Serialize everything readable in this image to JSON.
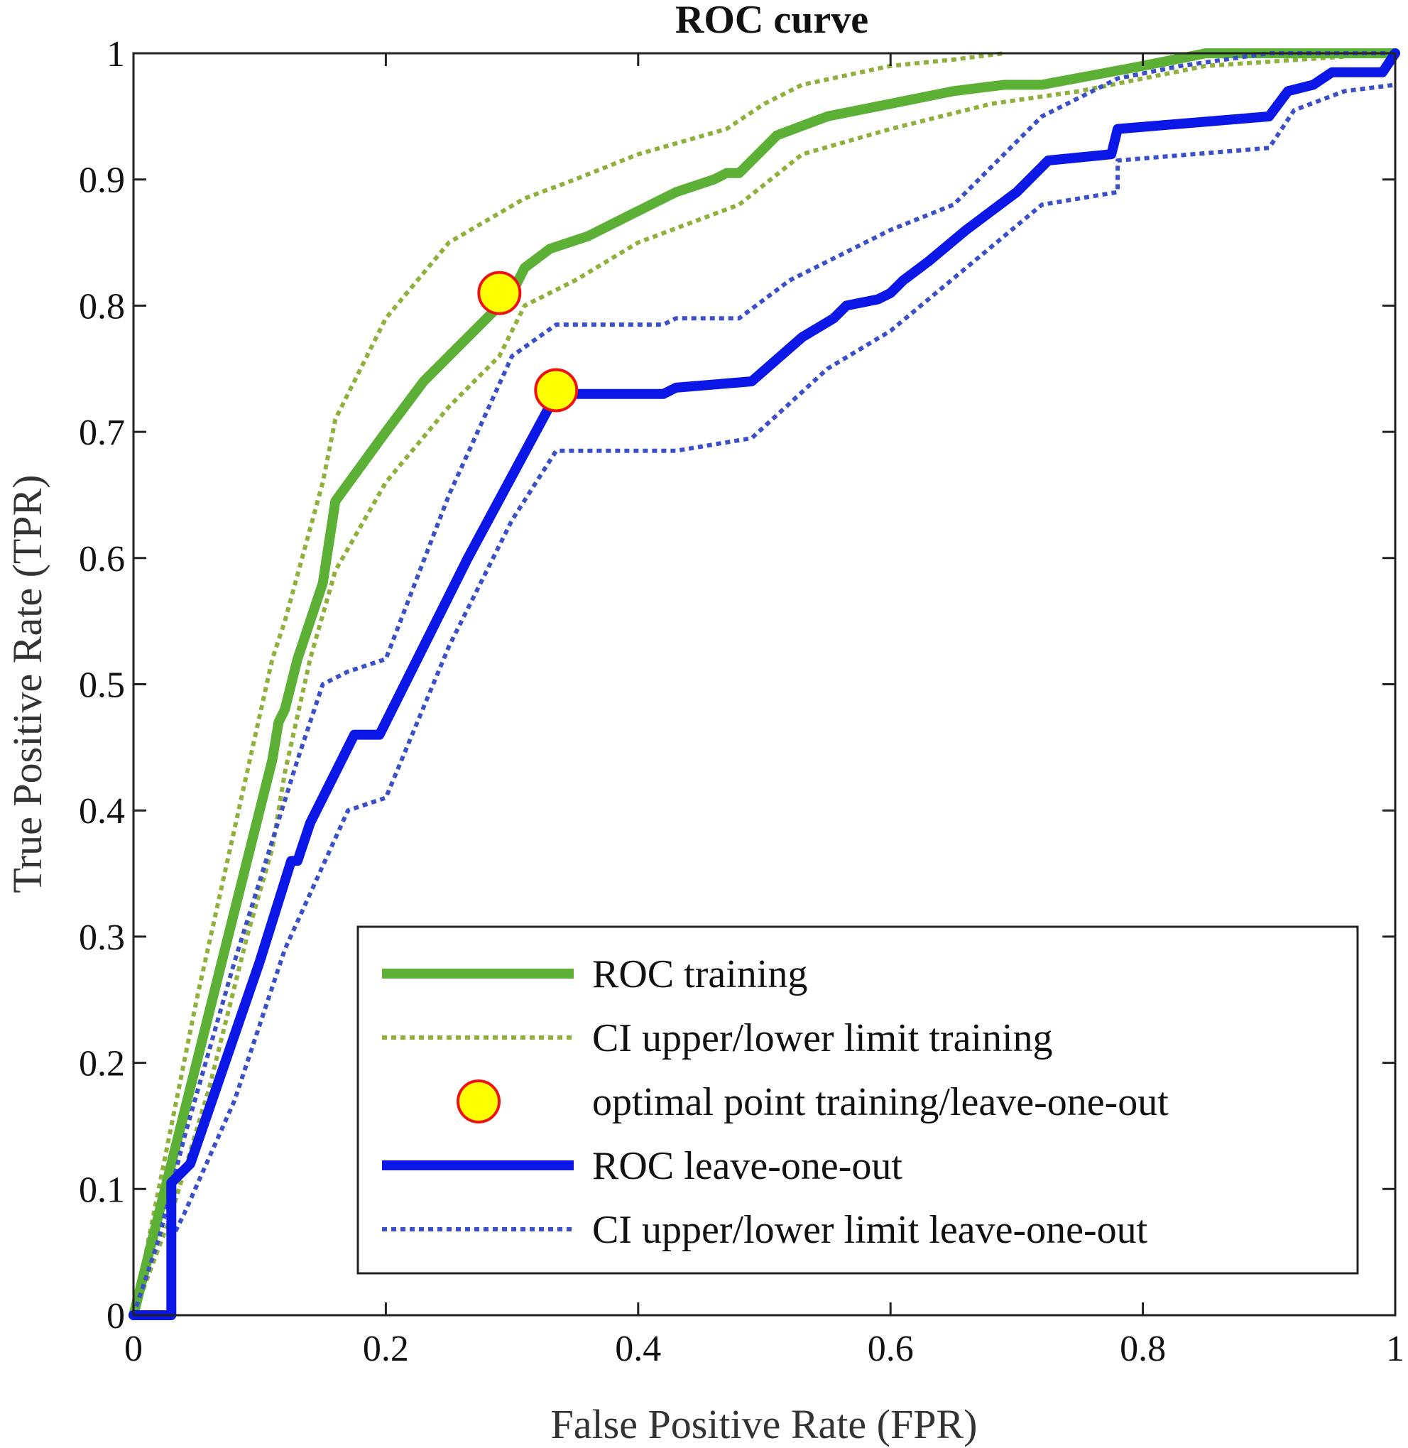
{
  "chart_data": {
    "type": "line",
    "title": "ROC curve",
    "xlabel": "False Positive Rate (FPR)",
    "ylabel": "True Positive Rate (TPR)",
    "xlim": [
      0,
      1
    ],
    "ylim": [
      0,
      1
    ],
    "xticks": [
      0,
      0.2,
      0.4,
      0.6,
      0.8,
      1
    ],
    "xtick_labels": [
      "0",
      "0.2",
      "0.4",
      "0.6",
      "0.8",
      "1"
    ],
    "yticks": [
      0,
      0.1,
      0.2,
      0.3,
      0.4,
      0.5,
      0.6,
      0.7,
      0.8,
      0.9,
      1
    ],
    "ytick_labels": [
      "0",
      "0.1",
      "0.2",
      "0.3",
      "0.4",
      "0.5",
      "0.6",
      "0.7",
      "0.8",
      "0.9",
      "1"
    ],
    "grid": false,
    "legend_position": "bottom-right",
    "series": [
      {
        "name": "CI upper/lower limit training",
        "color": "#8fb03a",
        "style": "dotted",
        "legend": true,
        "x": [
          0,
          0.02,
          0.05,
          0.09,
          0.11,
          0.12,
          0.15,
          0.16,
          0.2,
          0.25,
          0.31,
          0.35,
          0.4,
          0.47,
          0.5,
          0.53,
          0.6,
          0.65,
          0.69
        ],
        "y": [
          0,
          0.1,
          0.25,
          0.43,
          0.52,
          0.55,
          0.66,
          0.71,
          0.79,
          0.85,
          0.885,
          0.9,
          0.92,
          0.94,
          0.96,
          0.975,
          0.99,
          0.995,
          1.0
        ]
      },
      {
        "name": "CI lower limit training",
        "color": "#8fb03a",
        "style": "dotted",
        "legend": false,
        "x": [
          0,
          0.03,
          0.06,
          0.09,
          0.11,
          0.12,
          0.14,
          0.16,
          0.2,
          0.25,
          0.29,
          0.31,
          0.35,
          0.4,
          0.48,
          0.53,
          0.6,
          0.68,
          0.75,
          0.85,
          1.0
        ],
        "y": [
          0,
          0.08,
          0.18,
          0.3,
          0.37,
          0.43,
          0.52,
          0.59,
          0.66,
          0.72,
          0.76,
          0.8,
          0.82,
          0.85,
          0.88,
          0.92,
          0.94,
          0.96,
          0.97,
          0.99,
          1.0
        ]
      },
      {
        "name": "ROC training",
        "color": "#5cb035",
        "style": "solid",
        "legend": true,
        "x": [
          0,
          0.03,
          0.06,
          0.09,
          0.11,
          0.115,
          0.12,
          0.13,
          0.15,
          0.16,
          0.2,
          0.23,
          0.26,
          0.29,
          0.3,
          0.31,
          0.33,
          0.36,
          0.4,
          0.43,
          0.46,
          0.47,
          0.48,
          0.51,
          0.55,
          0.6,
          0.65,
          0.69,
          0.72,
          0.8,
          0.85,
          0.95,
          1.0
        ],
        "y": [
          0,
          0.12,
          0.24,
          0.36,
          0.44,
          0.47,
          0.48,
          0.52,
          0.58,
          0.645,
          0.7,
          0.74,
          0.77,
          0.8,
          0.81,
          0.83,
          0.845,
          0.855,
          0.875,
          0.89,
          0.9,
          0.905,
          0.905,
          0.935,
          0.95,
          0.96,
          0.97,
          0.975,
          0.975,
          0.99,
          1.0,
          1.0,
          1.0
        ]
      },
      {
        "name": "CI upper/lower limit leave-one-out",
        "color": "#3a4fc8",
        "style": "dotted",
        "legend": true,
        "x": [
          0,
          0.02,
          0.04,
          0.08,
          0.13,
          0.15,
          0.17,
          0.2,
          0.25,
          0.3,
          0.335,
          0.42,
          0.43,
          0.48,
          0.52,
          0.58,
          0.6,
          0.65,
          0.72,
          0.78,
          0.83,
          0.9,
          0.92,
          1.0
        ],
        "y": [
          0,
          0.06,
          0.14,
          0.28,
          0.44,
          0.5,
          0.51,
          0.52,
          0.65,
          0.76,
          0.785,
          0.785,
          0.79,
          0.79,
          0.82,
          0.85,
          0.86,
          0.88,
          0.95,
          0.98,
          0.99,
          1.0,
          1.0,
          1.0
        ]
      },
      {
        "name": "CI lower limit leave-one-out",
        "color": "#3a4fc8",
        "style": "dotted",
        "legend": false,
        "x": [
          0.03,
          0.04,
          0.08,
          0.12,
          0.17,
          0.2,
          0.25,
          0.3,
          0.335,
          0.43,
          0.49,
          0.55,
          0.6,
          0.66,
          0.72,
          0.78,
          0.78,
          0.9,
          0.92,
          0.96,
          1.0
        ],
        "y": [
          0.06,
          0.08,
          0.17,
          0.29,
          0.4,
          0.41,
          0.53,
          0.63,
          0.685,
          0.685,
          0.695,
          0.75,
          0.78,
          0.83,
          0.88,
          0.89,
          0.915,
          0.925,
          0.955,
          0.97,
          0.975
        ]
      },
      {
        "name": "ROC leave-one-out",
        "color": "#0a17e6",
        "style": "solid",
        "legend": true,
        "x": [
          0,
          0.025,
          0.03,
          0.03,
          0.045,
          0.1,
          0.125,
          0.13,
          0.14,
          0.175,
          0.195,
          0.265,
          0.335,
          0.42,
          0.43,
          0.49,
          0.53,
          0.555,
          0.565,
          0.59,
          0.6,
          0.61,
          0.63,
          0.66,
          0.7,
          0.72,
          0.725,
          0.775,
          0.78,
          0.9,
          0.915,
          0.935,
          0.95,
          0.99,
          1.0
        ],
        "y": [
          0,
          0,
          0,
          0.105,
          0.12,
          0.28,
          0.36,
          0.36,
          0.39,
          0.46,
          0.46,
          0.6,
          0.73,
          0.73,
          0.735,
          0.74,
          0.775,
          0.79,
          0.8,
          0.805,
          0.81,
          0.82,
          0.835,
          0.86,
          0.89,
          0.91,
          0.915,
          0.92,
          0.94,
          0.95,
          0.97,
          0.975,
          0.985,
          0.985,
          1.0
        ]
      }
    ],
    "markers": {
      "name": "optimal point training/leave-one-out",
      "fill": "#ffff00",
      "stroke": "#ee1111",
      "points": [
        {
          "x": 0.29,
          "y": 0.81
        },
        {
          "x": 0.335,
          "y": 0.733
        }
      ]
    },
    "legend": [
      {
        "label": "ROC training",
        "kind": "solid",
        "color": "#5cb035"
      },
      {
        "label": "CI upper/lower limit training",
        "kind": "dotted",
        "color": "#8fb03a"
      },
      {
        "label": "optimal point training/leave-one-out",
        "kind": "marker",
        "color": "#ffff00"
      },
      {
        "label": "ROC leave-one-out",
        "kind": "solid",
        "color": "#0a17e6"
      },
      {
        "label": "CI upper/lower limit leave-one-out",
        "kind": "dotted",
        "color": "#3a4fc8"
      }
    ]
  }
}
